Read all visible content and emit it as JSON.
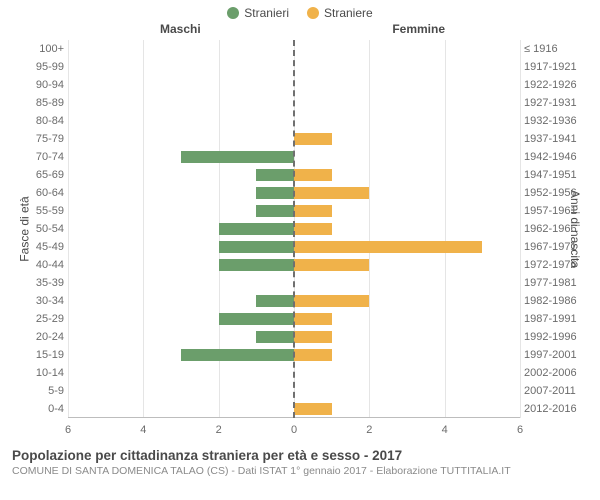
{
  "legend": {
    "male": {
      "label": "Stranieri",
      "color": "#6b9e6b"
    },
    "female": {
      "label": "Straniere",
      "color": "#f0b24a"
    }
  },
  "sides": {
    "left": "Maschi",
    "right": "Femmine"
  },
  "axes": {
    "left_label": "Fasce di età",
    "right_label": "Anni di nascita",
    "xmax": 6,
    "xticks": [
      6,
      4,
      2,
      0,
      2,
      4,
      6
    ]
  },
  "style": {
    "bg": "#ffffff",
    "grid_color": "#e5e5e5",
    "centerline_color": "#707070",
    "tick_font_size": 11
  },
  "rows": [
    {
      "age": "100+",
      "year": "≤ 1916",
      "m": 0,
      "f": 0
    },
    {
      "age": "95-99",
      "year": "1917-1921",
      "m": 0,
      "f": 0
    },
    {
      "age": "90-94",
      "year": "1922-1926",
      "m": 0,
      "f": 0
    },
    {
      "age": "85-89",
      "year": "1927-1931",
      "m": 0,
      "f": 0
    },
    {
      "age": "80-84",
      "year": "1932-1936",
      "m": 0,
      "f": 0
    },
    {
      "age": "75-79",
      "year": "1937-1941",
      "m": 0,
      "f": 1
    },
    {
      "age": "70-74",
      "year": "1942-1946",
      "m": 3,
      "f": 0
    },
    {
      "age": "65-69",
      "year": "1947-1951",
      "m": 1,
      "f": 1
    },
    {
      "age": "60-64",
      "year": "1952-1956",
      "m": 1,
      "f": 2
    },
    {
      "age": "55-59",
      "year": "1957-1961",
      "m": 1,
      "f": 1
    },
    {
      "age": "50-54",
      "year": "1962-1966",
      "m": 2,
      "f": 1
    },
    {
      "age": "45-49",
      "year": "1967-1971",
      "m": 2,
      "f": 5
    },
    {
      "age": "40-44",
      "year": "1972-1976",
      "m": 2,
      "f": 2
    },
    {
      "age": "35-39",
      "year": "1977-1981",
      "m": 0,
      "f": 0
    },
    {
      "age": "30-34",
      "year": "1982-1986",
      "m": 1,
      "f": 2
    },
    {
      "age": "25-29",
      "year": "1987-1991",
      "m": 2,
      "f": 1
    },
    {
      "age": "20-24",
      "year": "1992-1996",
      "m": 1,
      "f": 1
    },
    {
      "age": "15-19",
      "year": "1997-2001",
      "m": 3,
      "f": 1
    },
    {
      "age": "10-14",
      "year": "2002-2006",
      "m": 0,
      "f": 0
    },
    {
      "age": "5-9",
      "year": "2007-2011",
      "m": 0,
      "f": 0
    },
    {
      "age": "0-4",
      "year": "2012-2016",
      "m": 0,
      "f": 1
    }
  ],
  "footer": {
    "title": "Popolazione per cittadinanza straniera per età e sesso - 2017",
    "subtitle": "COMUNE DI SANTA DOMENICA TALAO (CS) - Dati ISTAT 1° gennaio 2017 - Elaborazione TUTTITALIA.IT"
  }
}
